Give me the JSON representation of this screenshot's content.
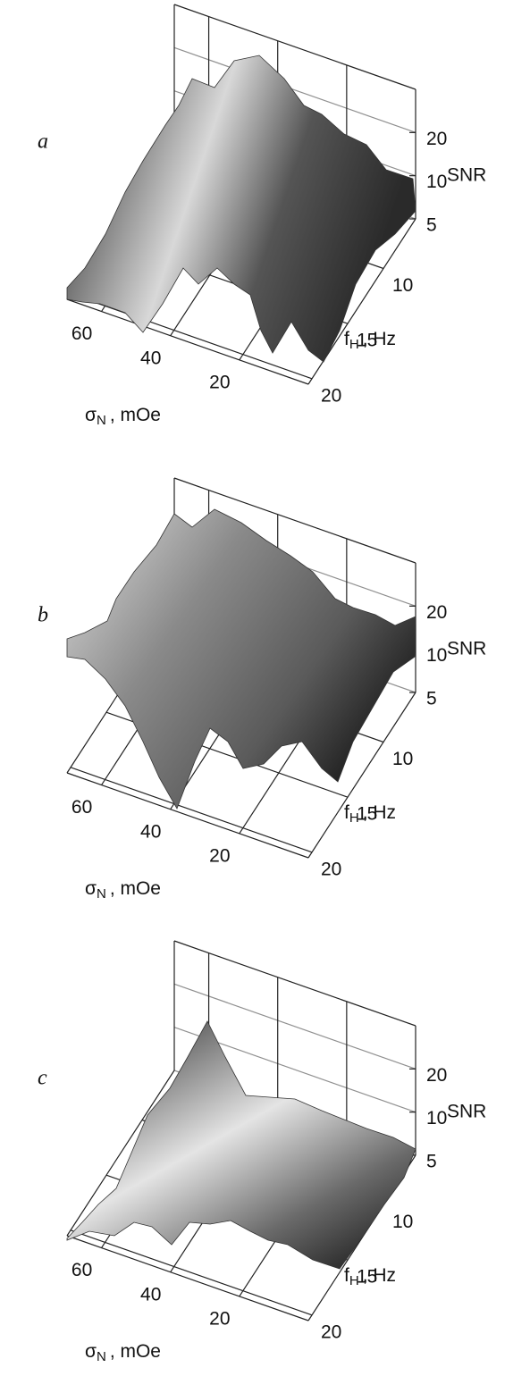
{
  "chart_data": [
    {
      "type": "surface",
      "panel_label": "a",
      "z_label": "SNR",
      "x_label": {
        "symbol": "σ",
        "subscript": "N",
        "unit": ", mOe"
      },
      "y_label": {
        "symbol": "f",
        "subscript": "H",
        "unit": ", Hz"
      },
      "xlim": [
        70,
        0
      ],
      "xticks": [
        60,
        40,
        20
      ],
      "ylim": [
        5.5,
        20.5
      ],
      "yticks": [
        10,
        15,
        20
      ],
      "zlim": [
        5,
        40
      ],
      "zticks": [
        5,
        10,
        20
      ],
      "zscale": "log"
    },
    {
      "type": "surface",
      "panel_label": "b",
      "z_label": "SNR",
      "x_label": {
        "symbol": "σ",
        "subscript": "N",
        "unit": ", mOe"
      },
      "y_label": {
        "symbol": "f",
        "subscript": "H",
        "unit": ", Hz"
      },
      "xlim": [
        70,
        0
      ],
      "xticks": [
        60,
        40,
        20
      ],
      "ylim": [
        5.5,
        20.5
      ],
      "yticks": [
        10,
        15,
        20
      ],
      "zlim": [
        5,
        40
      ],
      "zticks": [
        5,
        10,
        20
      ],
      "zscale": "log"
    },
    {
      "type": "surface",
      "panel_label": "c",
      "z_label": "SNR",
      "x_label": {
        "symbol": "σ",
        "subscript": "N",
        "unit": ", mOe"
      },
      "y_label": {
        "symbol": "f",
        "subscript": "H",
        "unit": ", Hz"
      },
      "xlim": [
        70,
        0
      ],
      "xticks": [
        60,
        40,
        20
      ],
      "ylim": [
        5.5,
        20.5
      ],
      "yticks": [
        10,
        15,
        20
      ],
      "zlim": [
        5,
        40
      ],
      "zticks": [
        5,
        10,
        20
      ],
      "zscale": "log"
    }
  ]
}
